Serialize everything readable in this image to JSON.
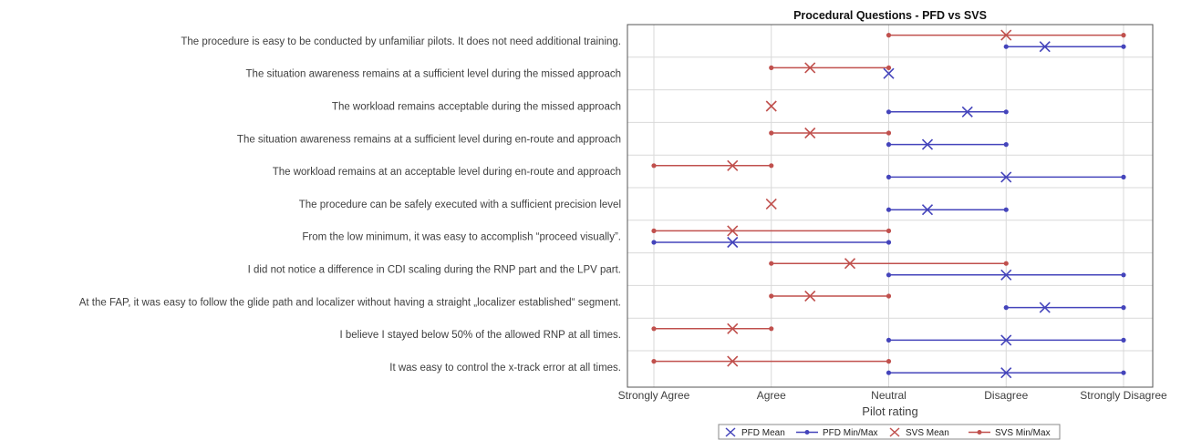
{
  "chart_data": {
    "type": "dot-range",
    "title": "Procedural Questions - PFD vs SVS",
    "xlabel": "Pilot rating",
    "x_ticks": [
      "Strongly Agree",
      "Agree",
      "Neutral",
      "Disagree",
      "Strongly Disagree"
    ],
    "xlim": [
      1,
      5
    ],
    "grid": true,
    "legend_position": "bottom",
    "questions": [
      "The procedure is easy to be conducted by unfamiliar pilots. It does not need additional training.",
      "The situation awareness remains at a sufficient level during the missed approach",
      "The workload remains acceptable during the missed approach",
      "The situation awareness remains at a sufficient level during en-route and approach",
      "The workload remains at an acceptable level during en-route and approach",
      "The procedure can be safely executed with a sufficient precision level",
      "From the low minimum, it was easy to accomplish “proceed visually”.",
      "I did not notice a difference in CDI scaling during the RNP part and the LPV part.",
      "At the FAP, it was easy to follow the glide path and localizer without having a straight „localizer established“ segment.",
      "I believe I stayed below 50% of the allowed RNP at all times.",
      "It was easy to control the x-track error at all times."
    ],
    "series": [
      {
        "name": "SVS",
        "color": "#c0504d",
        "min": [
          3,
          2,
          2,
          2,
          1,
          2,
          1,
          2,
          2,
          1,
          1
        ],
        "mean": [
          4,
          2.33,
          2,
          2.33,
          1.67,
          2,
          1.67,
          2.67,
          2.33,
          1.67,
          1.67
        ],
        "max": [
          5,
          3,
          2,
          3,
          2,
          2,
          3,
          4,
          3,
          2,
          3
        ]
      },
      {
        "name": "PFD",
        "color": "#4444bb",
        "min": [
          4,
          3,
          3,
          3,
          3,
          3,
          1,
          3,
          4,
          3,
          3
        ],
        "mean": [
          4.33,
          3,
          3.67,
          3.33,
          4,
          3.33,
          1.67,
          4,
          4.33,
          4,
          4
        ],
        "max": [
          5,
          3,
          4,
          4,
          5,
          4,
          3,
          5,
          5,
          5,
          5
        ]
      }
    ],
    "legend": [
      "PFD Mean",
      "PFD Min/Max",
      "SVS Mean",
      "SVS Min/Max"
    ]
  }
}
